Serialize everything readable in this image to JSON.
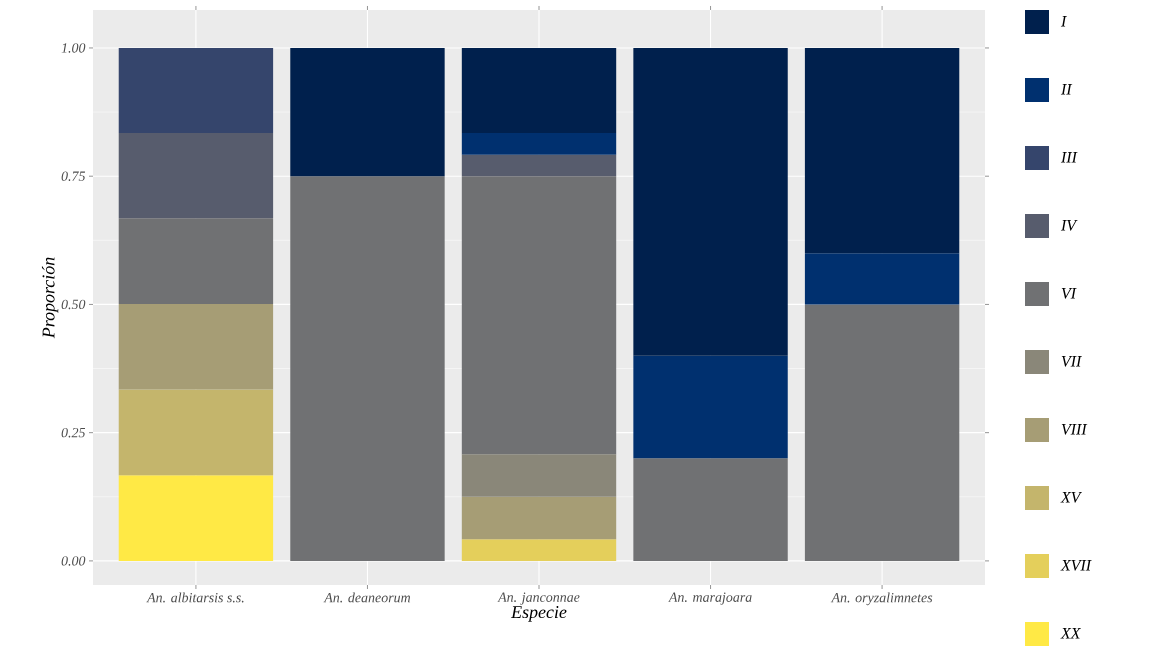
{
  "chart_data": {
    "type": "bar",
    "stacked": true,
    "xlabel": "Especie",
    "ylabel": "Proporción",
    "categories": [
      "An. albitarsis s.s.",
      "An. deaneorum",
      "An. janconnae",
      "An. marajoara",
      "An. oryzalimnetes"
    ],
    "ylim": [
      -0.047,
      1.074
    ],
    "yticks": [
      {
        "value": 0,
        "label": "0.00"
      },
      {
        "value": 0.25,
        "label": "0.25"
      },
      {
        "value": 0.5,
        "label": "0.50"
      },
      {
        "value": 0.75,
        "label": "0.75"
      },
      {
        "value": 1,
        "label": "1.00"
      }
    ],
    "grid": true,
    "legend": "right",
    "series": [
      {
        "name": "XX",
        "color": "#ffe945",
        "values": [
          0.167,
          null,
          null,
          null,
          null
        ]
      },
      {
        "name": "XVII",
        "color": "#e4cf5b",
        "values": [
          null,
          null,
          0.042,
          null,
          null
        ]
      },
      {
        "name": "XV",
        "color": "#c4b56c",
        "values": [
          0.167,
          null,
          null,
          null,
          null
        ]
      },
      {
        "name": "VIII",
        "color": "#a69d75",
        "values": [
          0.167,
          null,
          0.083,
          null,
          null
        ]
      },
      {
        "name": "VII",
        "color": "#8a8779",
        "values": [
          null,
          null,
          0.083,
          null,
          null
        ]
      },
      {
        "name": "VI",
        "color": "#707173",
        "values": [
          0.167,
          0.75,
          0.542,
          0.2,
          0.5
        ]
      },
      {
        "name": "IV",
        "color": "#575c6d",
        "values": [
          0.166,
          null,
          0.042,
          null,
          null
        ]
      },
      {
        "name": "III",
        "color": "#35456c",
        "values": [
          0.166,
          null,
          null,
          null,
          null
        ]
      },
      {
        "name": "II",
        "color": "#00306f",
        "values": [
          null,
          null,
          0.042,
          0.2,
          0.1
        ]
      },
      {
        "name": "I",
        "color": "#00204d",
        "values": [
          null,
          0.25,
          0.166,
          0.6,
          0.4
        ]
      }
    ]
  }
}
